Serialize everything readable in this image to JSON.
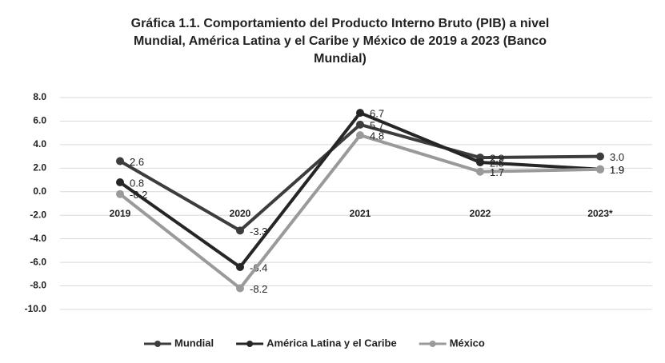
{
  "chart_data": {
    "type": "line",
    "title": "Gráfica 1.1. Comportamiento del Producto Interno Bruto (PIB) a nivel Mundial, América Latina y el Caribe y México de 2019 a 2023 (Banco Mundial)",
    "categories": [
      "2019",
      "2020",
      "2021",
      "2022",
      "2023*"
    ],
    "series": [
      {
        "name": "Mundial",
        "color": "#3d3d3d",
        "values": [
          2.6,
          -3.3,
          5.7,
          2.9,
          3.0
        ],
        "value_labels": [
          "2.6",
          "-3.3",
          "5.7",
          "2.9",
          "3.0"
        ]
      },
      {
        "name": "América Latina y el Caribe",
        "color": "#262626",
        "values": [
          0.8,
          -6.4,
          6.7,
          2.5,
          1.9
        ],
        "value_labels": [
          "0.8",
          "-6.4",
          "6.7",
          "2.5",
          "1.9"
        ]
      },
      {
        "name": "México",
        "color": "#9a9a9a",
        "values": [
          -0.2,
          -8.2,
          4.8,
          1.7,
          1.9
        ],
        "value_labels": [
          "-0.2",
          "-8.2",
          "4.8",
          "1.7",
          "1.9"
        ]
      }
    ],
    "ylim": [
      -10,
      8
    ],
    "yticks": [
      {
        "value": -10,
        "label": "-10.0"
      },
      {
        "value": -8,
        "label": "-8.0"
      },
      {
        "value": -6,
        "label": "-6.0"
      },
      {
        "value": -4,
        "label": "-4.0"
      },
      {
        "value": -2,
        "label": "-2.0"
      },
      {
        "value": 0,
        "label": "0.0"
      },
      {
        "value": 2,
        "label": "2.0"
      },
      {
        "value": 4,
        "label": "4.0"
      },
      {
        "value": 6,
        "label": "6.0"
      },
      {
        "value": 8,
        "label": "8.0"
      }
    ],
    "grid": true,
    "legend": "bottom"
  }
}
